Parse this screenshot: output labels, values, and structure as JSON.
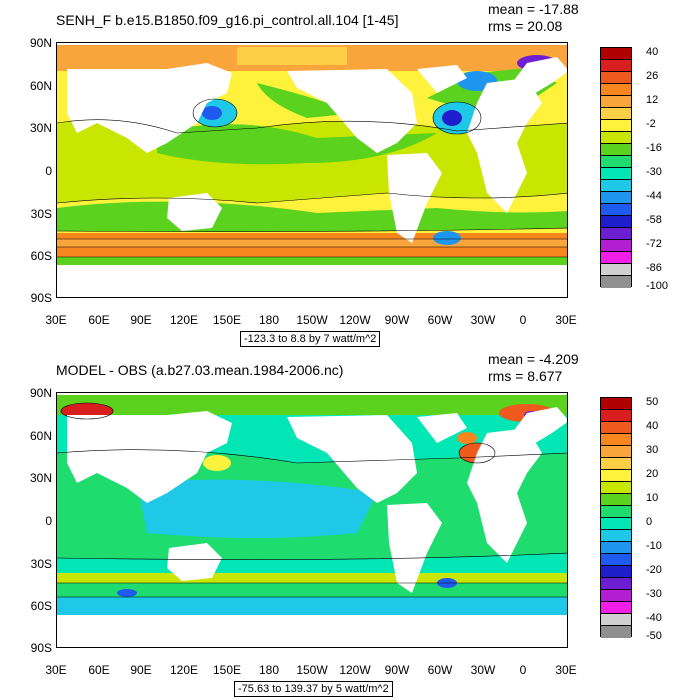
{
  "panels": [
    {
      "title": "SENH_F b.e15.B1850.f09_g16.pi_control.all.104 [1-45]",
      "mean": "mean = -17.88",
      "rms": "rms = 20.08",
      "info": "-123.3 to 8.8 by 7 watt/m^2",
      "colorbar": {
        "labels": [
          "40",
          "26",
          "12",
          "-2",
          "-16",
          "-30",
          "-44",
          "-58",
          "-72",
          "-86",
          "-100"
        ],
        "colors": [
          "#b00000",
          "#d81e1e",
          "#ee5a1e",
          "#f7861e",
          "#faa53c",
          "#fccf46",
          "#fff23c",
          "#c8e600",
          "#5ad21e",
          "#1edc6e",
          "#00e6b4",
          "#1ec8e6",
          "#1e96f0",
          "#1e5af0",
          "#1e1ecc",
          "#6e1ed2",
          "#b41ed2",
          "#f01ee6",
          "#d0d0d0",
          "#909090"
        ]
      }
    },
    {
      "title": "MODEL - OBS (a.b27.03.mean.1984-2006.nc)",
      "mean": "mean = -4.209",
      "rms": "rms = 8.677",
      "info": "-75.63 to 139.37 by 5 watt/m^2",
      "colorbar": {
        "labels": [
          "50",
          "40",
          "30",
          "20",
          "10",
          "0",
          "-10",
          "-20",
          "-30",
          "-40",
          "-50"
        ],
        "colors": [
          "#b00000",
          "#d81e1e",
          "#ee5a1e",
          "#f7861e",
          "#faa53c",
          "#fccf46",
          "#fff23c",
          "#c8e600",
          "#5ad21e",
          "#1edc6e",
          "#00e6b4",
          "#1ec8e6",
          "#1e96f0",
          "#1e5af0",
          "#1e1ecc",
          "#6e1ed2",
          "#b41ed2",
          "#f01ee6",
          "#d0d0d0",
          "#909090"
        ]
      }
    }
  ],
  "axes": {
    "lat_labels": [
      "90N",
      "60N",
      "30N",
      "0",
      "30S",
      "60S",
      "90S"
    ],
    "lon_labels": [
      "30E",
      "60E",
      "90E",
      "120E",
      "150E",
      "180",
      "150W",
      "120W",
      "90W",
      "60W",
      "30W",
      "0",
      "30E"
    ]
  }
}
